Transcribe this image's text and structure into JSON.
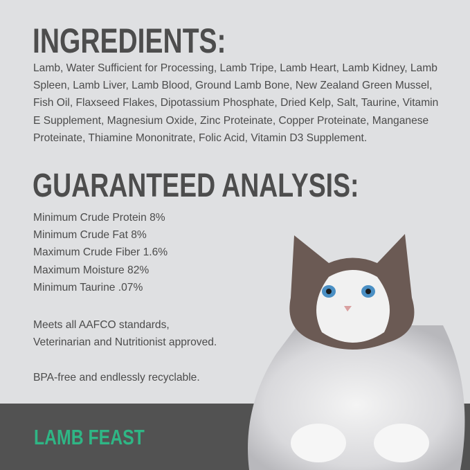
{
  "ingredients": {
    "title": "INGREDIENTS:",
    "text": "Lamb, Water Sufficient for Processing, Lamb Tripe, Lamb Heart, Lamb Kidney, Lamb Spleen, Lamb Liver, Lamb Blood, Ground Lamb Bone, New Zealand Green Mussel, Fish Oil, Flaxseed Flakes, Dipotassium Phosphate, Dried Kelp, Salt, Taurine, Vitamin E Supplement, Magnesium Oxide, Zinc Proteinate, Copper Proteinate, Manganese Proteinate, Thiamine Mononitrate, Folic Acid, Vitamin D3 Supplement."
  },
  "analysis": {
    "title": "GUARANTEED ANALYSIS:",
    "items": [
      "Minimum Crude Protein 8%",
      "Minimum Crude Fat 8%",
      "Maximum Crude Fiber 1.6%",
      "Maximum Moisture 82%",
      "Minimum Taurine .07%"
    ],
    "standards_1": "Meets all AAFCO standards,",
    "standards_2": "Veterinarian and Nutritionist approved.",
    "bpa": "BPA-free and endlessly recyclable."
  },
  "footer": {
    "flavor": "LAMB FEAST",
    "accent_color": "#2fb685"
  },
  "image": {
    "subject": "cat-photo"
  }
}
